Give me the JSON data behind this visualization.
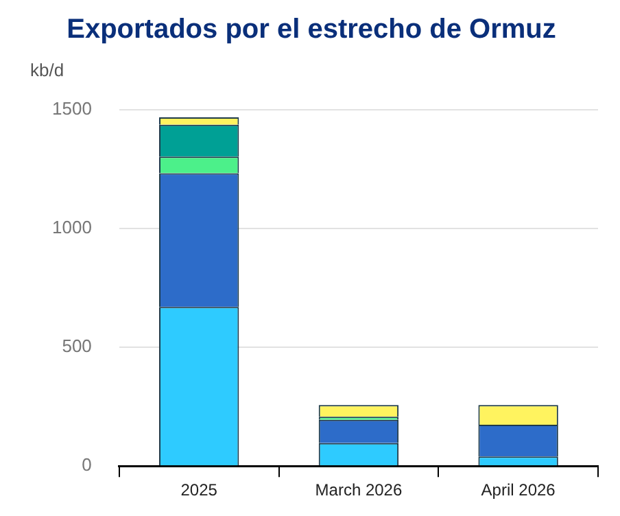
{
  "chart_data": {
    "type": "bar",
    "title": "Exportados por el estrecho de Ormuz",
    "ylabel": "kb/d",
    "categories": [
      "2025",
      "March 2026",
      "April 2026"
    ],
    "stacked": true,
    "series": [
      {
        "color": "#2ecbff",
        "values": [
          670,
          97,
          40
        ]
      },
      {
        "color": "#2d6cc9",
        "values": [
          563,
          98,
          134
        ]
      },
      {
        "color": "#4cf08a",
        "values": [
          70,
          13,
          0
        ]
      },
      {
        "color": "#00a095",
        "values": [
          134,
          0,
          0
        ]
      },
      {
        "color": "#fff35f",
        "values": [
          31,
          49,
          83
        ]
      }
    ],
    "ylim": [
      0,
      1500
    ],
    "yticks": [
      0,
      500,
      1000,
      1500
    ],
    "grid": "y",
    "legend": false
  }
}
